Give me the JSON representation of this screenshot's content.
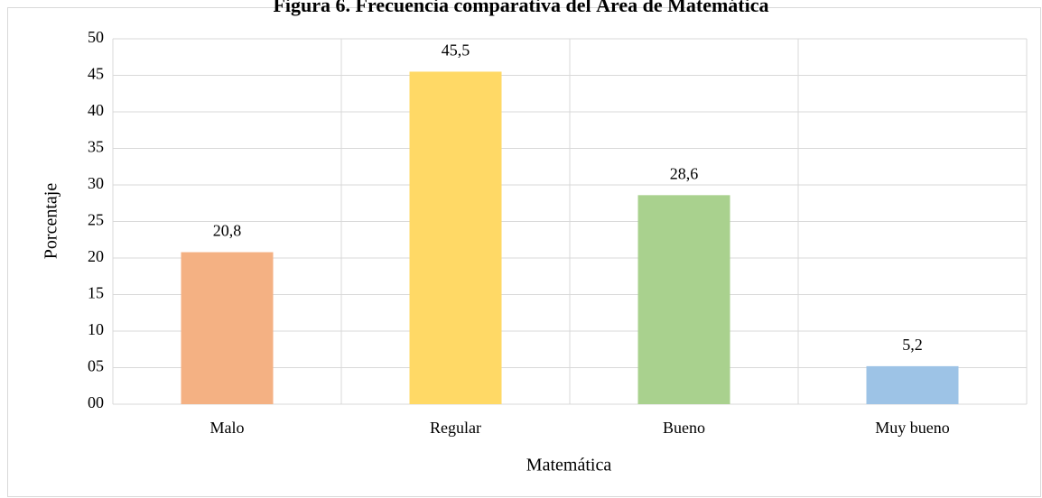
{
  "chart_data": {
    "type": "bar",
    "title": "Figura 6. Frecuencia comparativa del Área de Matemática",
    "xlabel": "Matemática",
    "ylabel": "Porcentaje",
    "categories": [
      "Malo",
      "Regular",
      "Bueno",
      "Muy bueno"
    ],
    "values": [
      20.8,
      45.5,
      28.6,
      5.2
    ],
    "value_labels": [
      "20,8",
      "45,5",
      "28,6",
      "5,2"
    ],
    "colors": [
      "#f4b183",
      "#ffd966",
      "#a9d18e",
      "#9dc3e6"
    ],
    "ylim": [
      0,
      50
    ],
    "yticks": [
      {
        "value": 0,
        "label": "00"
      },
      {
        "value": 5,
        "label": "05"
      },
      10,
      15,
      20,
      25,
      30,
      35,
      40,
      45,
      50
    ],
    "grid": true
  }
}
